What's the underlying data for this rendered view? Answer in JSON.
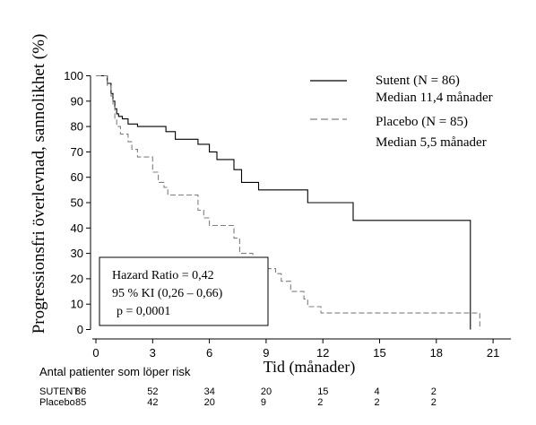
{
  "chart_data": {
    "type": "line",
    "xlabel": "Tid (månader)",
    "ylabel": "Progressionsfri överlevnad, sannolikhet (%)",
    "xlim": [
      0,
      21
    ],
    "ylim": [
      0,
      100
    ],
    "xticks": [
      0,
      3,
      6,
      9,
      12,
      15,
      18,
      21
    ],
    "yticks": [
      0,
      10,
      20,
      30,
      40,
      50,
      60,
      70,
      80,
      90,
      100
    ],
    "grid": false,
    "legend_position": "top-right",
    "series": [
      {
        "name": "Sutent (N = 86)",
        "sublabel": "Median 11,4 månader",
        "color": "#000000",
        "line_style": "solid",
        "x": [
          0,
          0.6,
          0.6,
          0.8,
          0.8,
          0.9,
          0.9,
          1.0,
          1.0,
          1.1,
          1.1,
          1.2,
          1.2,
          1.4,
          1.4,
          1.7,
          1.7,
          2.2,
          2.2,
          3.7,
          3.7,
          4.2,
          4.2,
          5.4,
          5.4,
          6.0,
          6.0,
          6.4,
          6.4,
          7.3,
          7.3,
          7.7,
          7.7,
          8.6,
          8.6,
          11.2,
          11.2,
          13.6,
          13.6,
          19.8,
          19.8
        ],
        "y": [
          100,
          100,
          97,
          97,
          93,
          93,
          90,
          90,
          87,
          87,
          85,
          85,
          84,
          84,
          83,
          83,
          81,
          81,
          80,
          80,
          78,
          78,
          75,
          75,
          73,
          73,
          70,
          70,
          67,
          67,
          63,
          63,
          58,
          58,
          55,
          55,
          50,
          50,
          43,
          43,
          0
        ]
      },
      {
        "name": "Placebo (N = 85)",
        "sublabel": "Median 5,5 månader",
        "color": "#7f7f7f",
        "line_style": "dashed",
        "x": [
          0,
          0.6,
          0.6,
          0.8,
          0.8,
          0.9,
          0.9,
          1.0,
          1.0,
          1.1,
          1.1,
          1.3,
          1.3,
          1.7,
          1.7,
          1.9,
          1.9,
          2.2,
          2.2,
          3.0,
          3.0,
          3.3,
          3.3,
          3.6,
          3.6,
          3.8,
          3.8,
          5.4,
          5.4,
          5.7,
          5.7,
          6.0,
          6.0,
          7.3,
          7.3,
          7.6,
          7.6,
          8.3,
          8.3,
          8.7,
          8.7,
          9.5,
          9.5,
          9.8,
          9.8,
          10.3,
          10.3,
          11.0,
          11.0,
          11.2,
          11.2,
          11.9,
          11.9,
          20.3,
          20.3
        ],
        "y": [
          100,
          100,
          96,
          96,
          92,
          92,
          88,
          88,
          83,
          83,
          80,
          80,
          77,
          77,
          74,
          74,
          71,
          71,
          68,
          68,
          62,
          62,
          58,
          58,
          56,
          56,
          53,
          53,
          47,
          47,
          44,
          44,
          41,
          41,
          36,
          36,
          30,
          30,
          27,
          27,
          24,
          24,
          22,
          22,
          19,
          19,
          15,
          15,
          12,
          12,
          9,
          9,
          6.5,
          6.5,
          0
        ]
      }
    ],
    "annotation": {
      "line1": "Hazard Ratio = 0,42",
      "line2": "95 % KI (0,26 – 0,66)",
      "line3": "p = 0,0001"
    },
    "risk_table": {
      "title": "Antal patienter som löper risk",
      "times": [
        0,
        3,
        6,
        9,
        12,
        15,
        18
      ],
      "rows": [
        {
          "label": "SUTENT",
          "values": [
            86,
            52,
            34,
            20,
            15,
            4,
            2
          ]
        },
        {
          "label": "Placebo",
          "values": [
            85,
            42,
            20,
            9,
            2,
            2,
            2
          ]
        }
      ]
    }
  }
}
